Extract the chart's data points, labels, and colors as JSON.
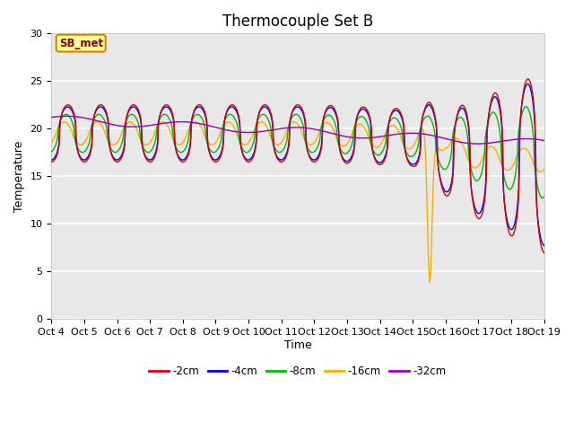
{
  "title": "Thermocouple Set B",
  "xlabel": "Time",
  "ylabel": "Temperature",
  "ylim": [
    0,
    30
  ],
  "yticks": [
    0,
    5,
    10,
    15,
    20,
    25,
    30
  ],
  "x_labels": [
    "Oct 4",
    "Oct 5",
    "Oct 6",
    "Oct 7",
    "Oct 8",
    "Oct 9",
    "Oct 10",
    "Oct 11",
    "Oct 12",
    "Oct 13",
    "Oct 14",
    "Oct 15",
    "Oct 16",
    "Oct 17",
    "Oct 18",
    "Oct 19"
  ],
  "colors": {
    "-2cm": "#dd0000",
    "-4cm": "#0000ee",
    "-8cm": "#00bb00",
    "-16cm": "#ffaa00",
    "-32cm": "#9900bb"
  },
  "legend_labels": [
    "-2cm",
    "-4cm",
    "-8cm",
    "-16cm",
    "-32cm"
  ],
  "annotation_text": "SB_met",
  "annotation_box_color": "#ffff99",
  "annotation_border_color": "#cc8800",
  "plot_bg_color": "#e8e8e8",
  "grid_color": "#ffffff",
  "title_fontsize": 12,
  "axis_label_fontsize": 9,
  "tick_fontsize": 8
}
